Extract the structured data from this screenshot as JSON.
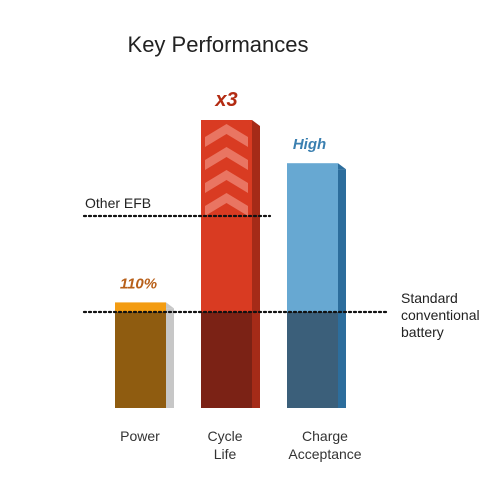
{
  "chart_data": {
    "type": "bar",
    "title": "Key Performances",
    "categories": [
      "Power",
      "Cycle Life",
      "Charge Acceptance"
    ],
    "category_lines": [
      [
        "Power"
      ],
      [
        "Cycle",
        "Life"
      ],
      [
        "Charge",
        "Acceptance"
      ]
    ],
    "values": [
      1.1,
      3.0,
      2.55
    ],
    "value_labels": [
      "110%",
      "x3",
      "High"
    ],
    "baseline_value": 1.0,
    "baseline_label": [
      "Standard",
      "conventional",
      "battery"
    ],
    "reference_value": 2.0,
    "reference_label": "Other EFB",
    "ylim": [
      0,
      3.2
    ],
    "colors": {
      "power_top": "#f39c12",
      "power_base": "#8f5c10",
      "power_side": "#c7c7c7",
      "label_power": "#b8601a",
      "cycle_top": "#d93b22",
      "cycle_base": "#7b2215",
      "cycle_side": "#a52b18",
      "chevron": "#ee8a78",
      "label_cycle": "#b32b12",
      "charge_top": "#67a8d2",
      "charge_base": "#3b5f7a",
      "charge_side": "#2c6d9c",
      "label_charge": "#3a7fb0",
      "dotted_line": "#111111"
    }
  }
}
